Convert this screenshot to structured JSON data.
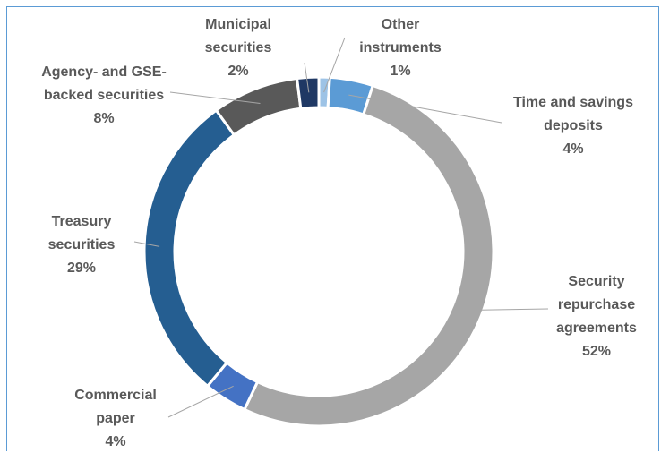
{
  "chart_data": {
    "type": "pie",
    "donut": true,
    "title": "",
    "categories": [
      "Other instruments",
      "Time and savings deposits",
      "Security repurchase agreements",
      "Commercial paper",
      "Treasury securities",
      "Agency- and GSE-backed securities",
      "Municipal securities"
    ],
    "values": [
      1,
      4,
      52,
      4,
      29,
      8,
      2
    ],
    "value_labels": [
      "1%",
      "4%",
      "52%",
      "4%",
      "29%",
      "8%",
      "2%"
    ],
    "label_lines": [
      [
        "Other",
        "instruments"
      ],
      [
        "Time and savings",
        "deposits"
      ],
      [
        "Security",
        "repurchase",
        "agreements"
      ],
      [
        "Commercial",
        "paper"
      ],
      [
        "Treasury",
        "securities"
      ],
      [
        "Agency- and GSE-",
        "backed securities"
      ],
      [
        "Municipal",
        "securities"
      ]
    ],
    "colors": [
      "#9dc3e6",
      "#5b9bd5",
      "#a6a6a6",
      "#4472c4",
      "#255e91",
      "#595959",
      "#1f3864"
    ],
    "legend": "none"
  }
}
